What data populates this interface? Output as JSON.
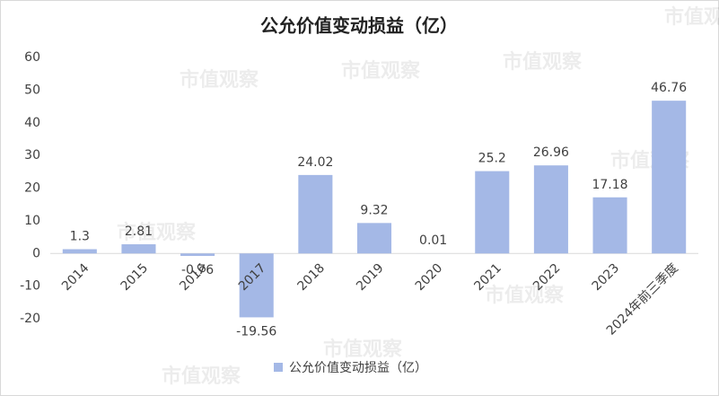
{
  "chart_data": {
    "type": "bar",
    "title": "公允价值变动损益（亿）",
    "categories": [
      "2014",
      "2015",
      "2016",
      "2017",
      "2018",
      "2019",
      "2020",
      "2021",
      "2022",
      "2023",
      "2024年前三季度"
    ],
    "series": [
      {
        "name": "公允价值变动损益（亿）",
        "color": "#a4b8e6",
        "values": [
          1.3,
          2.81,
          -0.76,
          -19.56,
          24.02,
          9.32,
          0.01,
          25.2,
          26.96,
          17.18,
          46.76
        ]
      }
    ],
    "ylim": [
      -20,
      60
    ],
    "yticks": [
      -20,
      -10,
      0,
      10,
      20,
      30,
      40,
      50,
      60
    ],
    "legend": "bottom",
    "grid": false,
    "watermark": "市值观察"
  }
}
